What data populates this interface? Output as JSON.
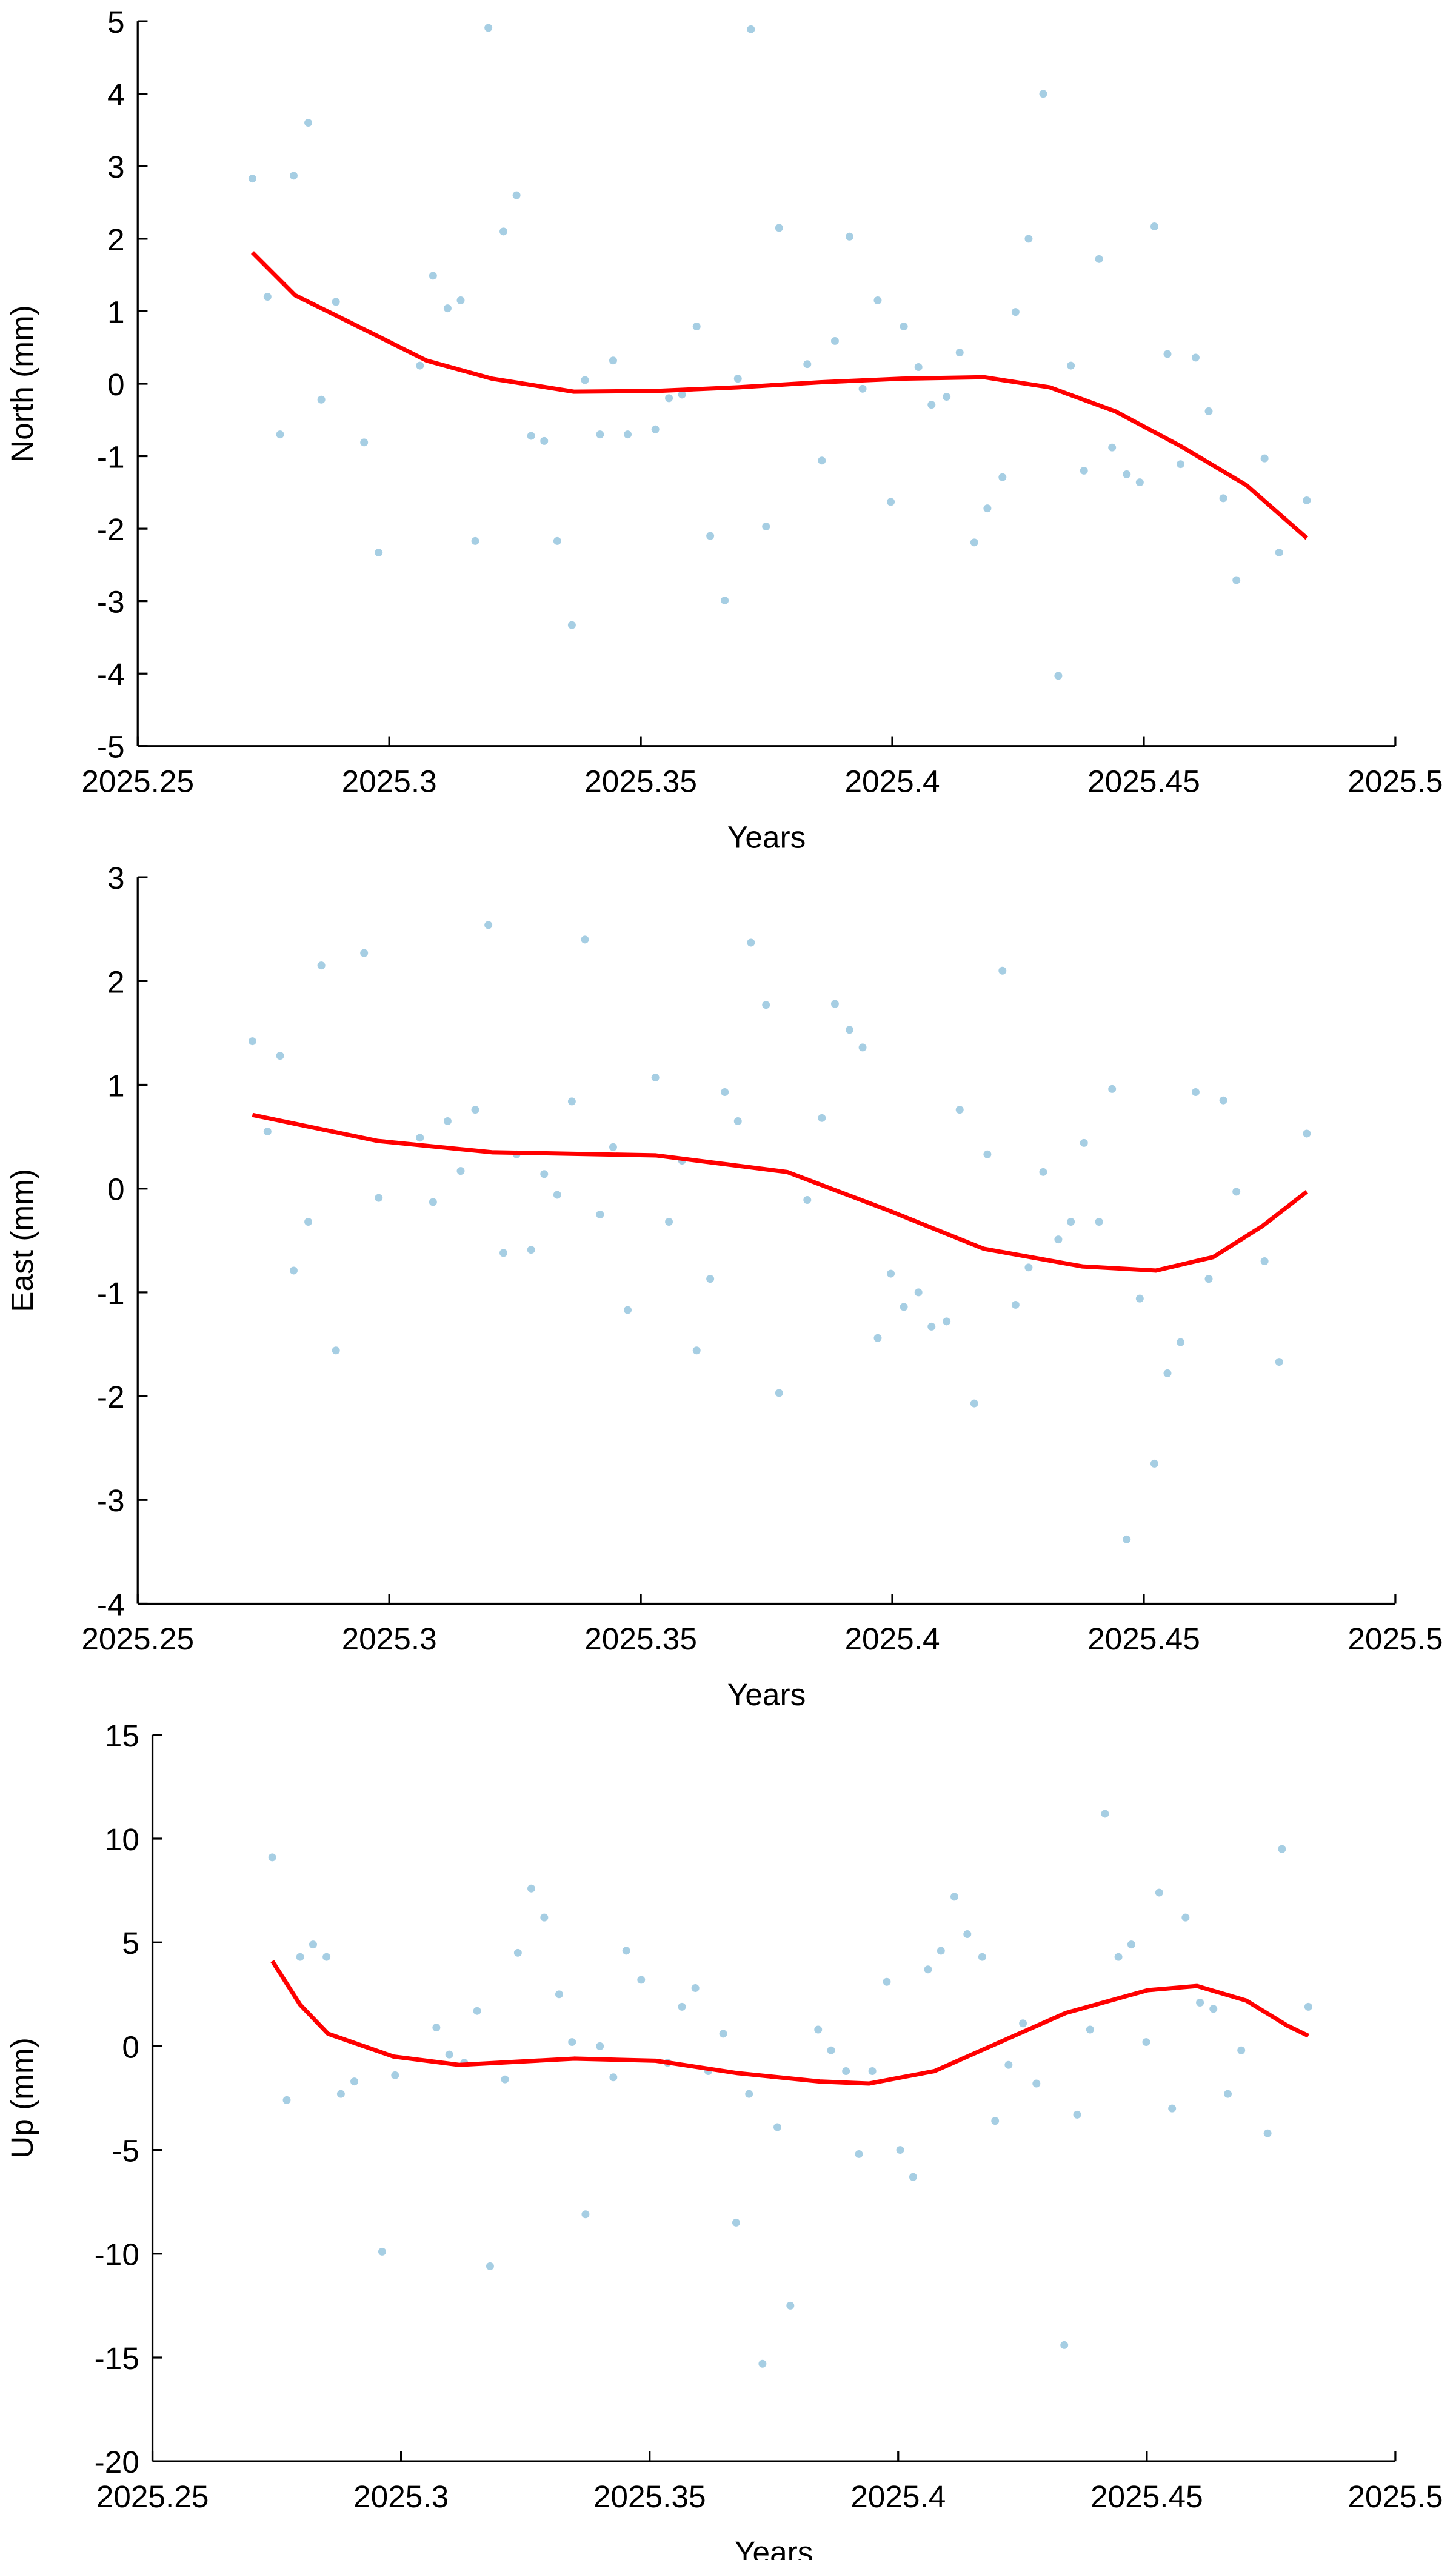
{
  "chart_data": [
    {
      "type": "scatter",
      "x_label": "Years",
      "y_label": "North (mm)",
      "xlim": [
        2025.25,
        2025.5
      ],
      "xticks": [
        2025.25,
        2025.3,
        2025.35,
        2025.4,
        2025.45,
        2025.5
      ],
      "ylim": [
        -5,
        5
      ],
      "yticks": [
        -5,
        -4,
        -3,
        -2,
        -1,
        0,
        1,
        2,
        3,
        4,
        5
      ],
      "series": [
        {
          "type": "scatter",
          "color": "#a6cee3",
          "x": [
            2025.2728,
            2025.2758,
            2025.2783,
            2025.281,
            2025.2839,
            2025.2865,
            2025.2894,
            2025.295,
            2025.2979,
            2025.3061,
            2025.3087,
            2025.3116,
            2025.3142,
            2025.3171,
            2025.3197,
            2025.3227,
            2025.3253,
            2025.3282,
            2025.3308,
            2025.3334,
            2025.3363,
            2025.3389,
            2025.3419,
            2025.3445,
            2025.3474,
            2025.3529,
            2025.3556,
            2025.3582,
            2025.3611,
            2025.3638,
            2025.3667,
            2025.3693,
            2025.3719,
            2025.3749,
            2025.3775,
            2025.3831,
            2025.386,
            2025.3886,
            2025.3915,
            2025.3941,
            2025.3971,
            2025.3997,
            2025.4023,
            2025.4052,
            2025.4078,
            2025.4108,
            2025.4134,
            2025.4163,
            2025.4189,
            2025.4219,
            2025.4245,
            2025.4271,
            2025.43,
            2025.433,
            2025.4355,
            2025.4381,
            2025.4411,
            2025.4437,
            2025.4466,
            2025.4492,
            2025.4521,
            2025.4547,
            2025.4573,
            2025.4603,
            2025.4629,
            2025.4658,
            2025.4684,
            2025.474,
            2025.4769,
            2025.4824
          ],
          "values": [
            2.83,
            1.2,
            -0.7,
            2.87,
            3.6,
            -0.22,
            1.13,
            -0.81,
            -2.33,
            0.25,
            1.49,
            1.04,
            1.15,
            -2.17,
            4.91,
            2.1,
            2.6,
            -0.72,
            -0.79,
            -2.17,
            -3.33,
            0.05,
            -0.7,
            0.32,
            -0.7,
            -0.63,
            -0.2,
            -0.15,
            0.79,
            -2.1,
            -2.99,
            0.07,
            4.89,
            -1.97,
            2.15,
            0.27,
            -1.06,
            0.59,
            2.03,
            -0.07,
            1.15,
            -1.63,
            0.79,
            0.23,
            -0.29,
            -0.18,
            0.43,
            -2.19,
            -1.72,
            -1.29,
            0.99,
            2.0,
            4.0,
            -4.03,
            0.25,
            -1.2,
            1.72,
            -0.88,
            -1.25,
            -1.36,
            2.17,
            0.41,
            -1.11,
            0.36,
            -0.38,
            -1.58,
            -2.71,
            -1.03,
            -2.33,
            -1.61
          ]
        },
        {
          "type": "line",
          "color": "#ff0000",
          "x": [
            2025.2728,
            2025.2813,
            2025.2976,
            2025.3074,
            2025.3204,
            2025.3367,
            2025.353,
            2025.3693,
            2025.3856,
            2025.4019,
            2025.4182,
            2025.4313,
            2025.4443,
            2025.4573,
            2025.4704,
            2025.4824
          ],
          "values": [
            1.81,
            1.22,
            0.66,
            0.32,
            0.07,
            -0.11,
            -0.1,
            -0.05,
            0.02,
            0.07,
            0.09,
            -0.05,
            -0.38,
            -0.86,
            -1.4,
            -2.13
          ]
        }
      ]
    },
    {
      "type": "scatter",
      "x_label": "Years",
      "y_label": "East (mm)",
      "xlim": [
        2025.25,
        2025.5
      ],
      "xticks": [
        2025.25,
        2025.3,
        2025.35,
        2025.4,
        2025.45,
        2025.5
      ],
      "ylim": [
        -4,
        3
      ],
      "yticks": [
        -4,
        -3,
        -2,
        -1,
        0,
        1,
        2,
        3
      ],
      "series": [
        {
          "type": "scatter",
          "color": "#a6cee3",
          "x": [
            2025.2728,
            2025.2758,
            2025.2783,
            2025.281,
            2025.2839,
            2025.2865,
            2025.2894,
            2025.295,
            2025.2979,
            2025.3061,
            2025.3087,
            2025.3116,
            2025.3142,
            2025.3171,
            2025.3197,
            2025.3227,
            2025.3253,
            2025.3282,
            2025.3308,
            2025.3334,
            2025.3363,
            2025.3389,
            2025.3419,
            2025.3445,
            2025.3474,
            2025.3529,
            2025.3582,
            2025.3556,
            2025.3611,
            2025.3638,
            2025.3667,
            2025.3693,
            2025.3719,
            2025.3749,
            2025.3775,
            2025.3831,
            2025.386,
            2025.3886,
            2025.3915,
            2025.3941,
            2025.3971,
            2025.3997,
            2025.4023,
            2025.4052,
            2025.4078,
            2025.4108,
            2025.4134,
            2025.4163,
            2025.4189,
            2025.4219,
            2025.4245,
            2025.4271,
            2025.43,
            2025.433,
            2025.4355,
            2025.4381,
            2025.4411,
            2025.4437,
            2025.4466,
            2025.4492,
            2025.4521,
            2025.4547,
            2025.4573,
            2025.4603,
            2025.4629,
            2025.4658,
            2025.4684,
            2025.474,
            2025.4769,
            2025.4824
          ],
          "values": [
            1.42,
            0.55,
            1.28,
            -0.79,
            -0.32,
            2.15,
            -1.56,
            2.27,
            -0.09,
            0.49,
            -0.13,
            0.65,
            0.17,
            0.76,
            2.54,
            -0.62,
            0.33,
            -0.59,
            0.14,
            -0.06,
            0.84,
            2.4,
            -0.25,
            0.4,
            -1.17,
            1.07,
            0.27,
            -0.32,
            -1.56,
            -0.87,
            0.93,
            0.65,
            2.37,
            1.77,
            -1.97,
            -0.11,
            0.68,
            1.78,
            1.53,
            1.36,
            -1.44,
            -0.82,
            -1.14,
            -1.0,
            -1.33,
            -1.28,
            0.76,
            -2.07,
            0.33,
            2.1,
            -1.12,
            -0.76,
            0.16,
            -0.49,
            -0.32,
            0.44,
            -0.32,
            0.96,
            -3.38,
            -1.06,
            -2.65,
            -1.78,
            -1.48,
            0.93,
            -0.87,
            0.85,
            -0.03,
            -0.7,
            -1.67,
            0.53
          ]
        },
        {
          "type": "line",
          "color": "#ff0000",
          "x": [
            2025.2728,
            2025.2976,
            2025.3204,
            2025.353,
            2025.3791,
            2025.3987,
            2025.4182,
            2025.4378,
            2025.4524,
            2025.4638,
            2025.4736,
            2025.4824
          ],
          "values": [
            0.71,
            0.46,
            0.35,
            0.32,
            0.16,
            -0.2,
            -0.58,
            -0.75,
            -0.79,
            -0.66,
            -0.36,
            -0.03
          ]
        }
      ]
    },
    {
      "type": "scatter",
      "x_label": "Years",
      "y_label": "Up (mm)",
      "xlim": [
        2025.25,
        2025.5
      ],
      "xticks": [
        2025.25,
        2025.3,
        2025.35,
        2025.4,
        2025.45,
        2025.5
      ],
      "ylim": [
        -20,
        15
      ],
      "yticks": [
        -20,
        -15,
        -10,
        -5,
        0,
        5,
        10,
        15
      ],
      "series": [
        {
          "type": "scatter",
          "color": "#a6cee3",
          "x": [
            2025.2741,
            2025.277,
            2025.2797,
            2025.2823,
            2025.285,
            2025.2879,
            2025.2906,
            2025.2962,
            2025.2988,
            2025.3071,
            2025.3097,
            2025.3127,
            2025.3153,
            2025.3179,
            2025.3209,
            2025.3235,
            2025.3262,
            2025.3288,
            2025.3318,
            2025.3344,
            2025.3371,
            2025.34,
            2025.3427,
            2025.3453,
            2025.3483,
            2025.3536,
            2025.3565,
            2025.3592,
            2025.3618,
            2025.3648,
            2025.3674,
            2025.37,
            2025.3727,
            2025.3757,
            2025.3783,
            2025.3839,
            2025.3865,
            2025.3895,
            2025.3921,
            2025.3948,
            2025.3977,
            2025.4004,
            2025.403,
            2025.406,
            2025.4086,
            2025.4113,
            2025.4139,
            2025.4169,
            2025.4195,
            2025.4222,
            2025.4251,
            2025.4278,
            2025.4334,
            2025.436,
            2025.4386,
            2025.4416,
            2025.4443,
            2025.4469,
            2025.4499,
            2025.4525,
            2025.4551,
            2025.4578,
            2025.4607,
            2025.4634,
            2025.4663,
            2025.469,
            2025.4743,
            2025.4772,
            2025.4825
          ],
          "values": [
            9.1,
            -2.6,
            4.3,
            4.9,
            4.3,
            -2.3,
            -1.7,
            -9.9,
            -1.4,
            0.9,
            -0.4,
            -0.8,
            1.7,
            -10.6,
            -1.6,
            4.5,
            7.6,
            6.2,
            2.5,
            0.2,
            -8.1,
            0.0,
            -1.5,
            4.6,
            3.2,
            -0.8,
            1.9,
            2.8,
            -1.2,
            0.6,
            -8.5,
            -2.3,
            -15.3,
            -3.9,
            -12.5,
            0.8,
            -0.2,
            -1.2,
            -5.2,
            -1.2,
            3.1,
            -5.0,
            -6.3,
            3.7,
            4.6,
            7.2,
            5.4,
            4.3,
            -3.6,
            -0.9,
            1.1,
            -1.8,
            -14.4,
            -3.3,
            0.8,
            11.2,
            4.3,
            4.9,
            0.2,
            7.4,
            -3.0,
            6.2,
            2.1,
            1.8,
            -2.3,
            -0.2,
            -4.2,
            9.5,
            1.9
          ]
        },
        {
          "type": "line",
          "color": "#ff0000",
          "x": [
            2025.2741,
            2025.2797,
            2025.2853,
            2025.2985,
            2025.3117,
            2025.3348,
            2025.3512,
            2025.3677,
            2025.3842,
            2025.3941,
            2025.4073,
            2025.4205,
            2025.4337,
            2025.4502,
            2025.4601,
            2025.47,
            2025.4782,
            2025.4825
          ],
          "values": [
            4.1,
            2.0,
            0.6,
            -0.5,
            -0.9,
            -0.6,
            -0.7,
            -1.3,
            -1.7,
            -1.8,
            -1.2,
            0.2,
            1.6,
            2.7,
            2.9,
            2.2,
            1.0,
            0.5
          ]
        }
      ]
    }
  ]
}
